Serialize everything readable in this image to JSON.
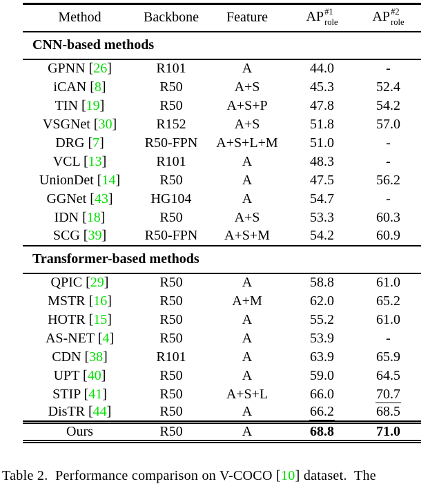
{
  "colors": {
    "citation_green": "#00e000"
  },
  "table": {
    "columns": {
      "method": "Method",
      "backbone": "Backbone",
      "feature": "Feature"
    },
    "ap_header": {
      "base": "AP",
      "sub": "role",
      "ap1_sup": "#1",
      "ap2_sup": "#2"
    },
    "sections": [
      {
        "title": "CNN-based methods",
        "rows": [
          {
            "method": "GPNN",
            "cite": "26",
            "backbone": "R101",
            "feature": "A",
            "ap1": "44.0",
            "ap2": "-"
          },
          {
            "method": "iCAN",
            "cite": "8",
            "backbone": "R50",
            "feature": "A+S",
            "ap1": "45.3",
            "ap2": "52.4"
          },
          {
            "method": "TIN",
            "cite": "19",
            "backbone": "R50",
            "feature": "A+S+P",
            "ap1": "47.8",
            "ap2": "54.2"
          },
          {
            "method": "VSGNet",
            "cite": "30",
            "backbone": "R152",
            "feature": "A+S",
            "ap1": "51.8",
            "ap2": "57.0"
          },
          {
            "method": "DRG",
            "cite": "7",
            "backbone": "R50-FPN",
            "feature": "A+S+L+M",
            "ap1": "51.0",
            "ap2": "-"
          },
          {
            "method": "VCL",
            "cite": "13",
            "backbone": "R101",
            "feature": "A",
            "ap1": "48.3",
            "ap2": "-"
          },
          {
            "method": "UnionDet",
            "cite": "14",
            "backbone": "R50",
            "feature": "A",
            "ap1": "47.5",
            "ap2": "56.2"
          },
          {
            "method": "GGNet",
            "cite": "43",
            "backbone": "HG104",
            "feature": "A",
            "ap1": "54.7",
            "ap2": "-"
          },
          {
            "method": "IDN",
            "cite": "18",
            "backbone": "R50",
            "feature": "A+S",
            "ap1": "53.3",
            "ap2": "60.3"
          },
          {
            "method": "SCG",
            "cite": "39",
            "backbone": "R50-FPN",
            "feature": "A+S+M",
            "ap1": "54.2",
            "ap2": "60.9"
          }
        ]
      },
      {
        "title": "Transformer-based methods",
        "rows": [
          {
            "method": "QPIC",
            "cite": "29",
            "backbone": "R50",
            "feature": "A",
            "ap1": "58.8",
            "ap2": "61.0"
          },
          {
            "method": "MSTR",
            "cite": "16",
            "backbone": "R50",
            "feature": "A+M",
            "ap1": "62.0",
            "ap2": "65.2"
          },
          {
            "method": "HOTR",
            "cite": "15",
            "backbone": "R50",
            "feature": "A",
            "ap1": "55.2",
            "ap2": "61.0"
          },
          {
            "method": "AS-NET",
            "cite": "4",
            "backbone": "R50",
            "feature": "A",
            "ap1": "53.9",
            "ap2": "-"
          },
          {
            "method": "CDN",
            "cite": "38",
            "backbone": "R101",
            "feature": "A",
            "ap1": "63.9",
            "ap2": "65.9"
          },
          {
            "method": "UPT",
            "cite": "40",
            "backbone": "R50",
            "feature": "A",
            "ap1": "59.0",
            "ap2": "64.5"
          },
          {
            "method": "STIP",
            "cite": "41",
            "backbone": "R50",
            "feature": "A+S+L",
            "ap1": "66.0",
            "ap2": "70.7",
            "ap2_underline": true
          },
          {
            "method": "DisTR",
            "cite": "44",
            "backbone": "R50",
            "feature": "A",
            "ap1": "66.2",
            "ap2": "68.5",
            "ap1_underline": true
          }
        ]
      }
    ],
    "ours_row": {
      "method": "Ours",
      "backbone": "R50",
      "feature": "A",
      "ap1": "68.8",
      "ap2": "71.0",
      "ap1_bold": true,
      "ap2_bold": true
    }
  },
  "caption": {
    "prefix": "Table 2.  Performance comparison on V-COCO [",
    "cite": "10",
    "suffix": "] dataset.  The"
  }
}
